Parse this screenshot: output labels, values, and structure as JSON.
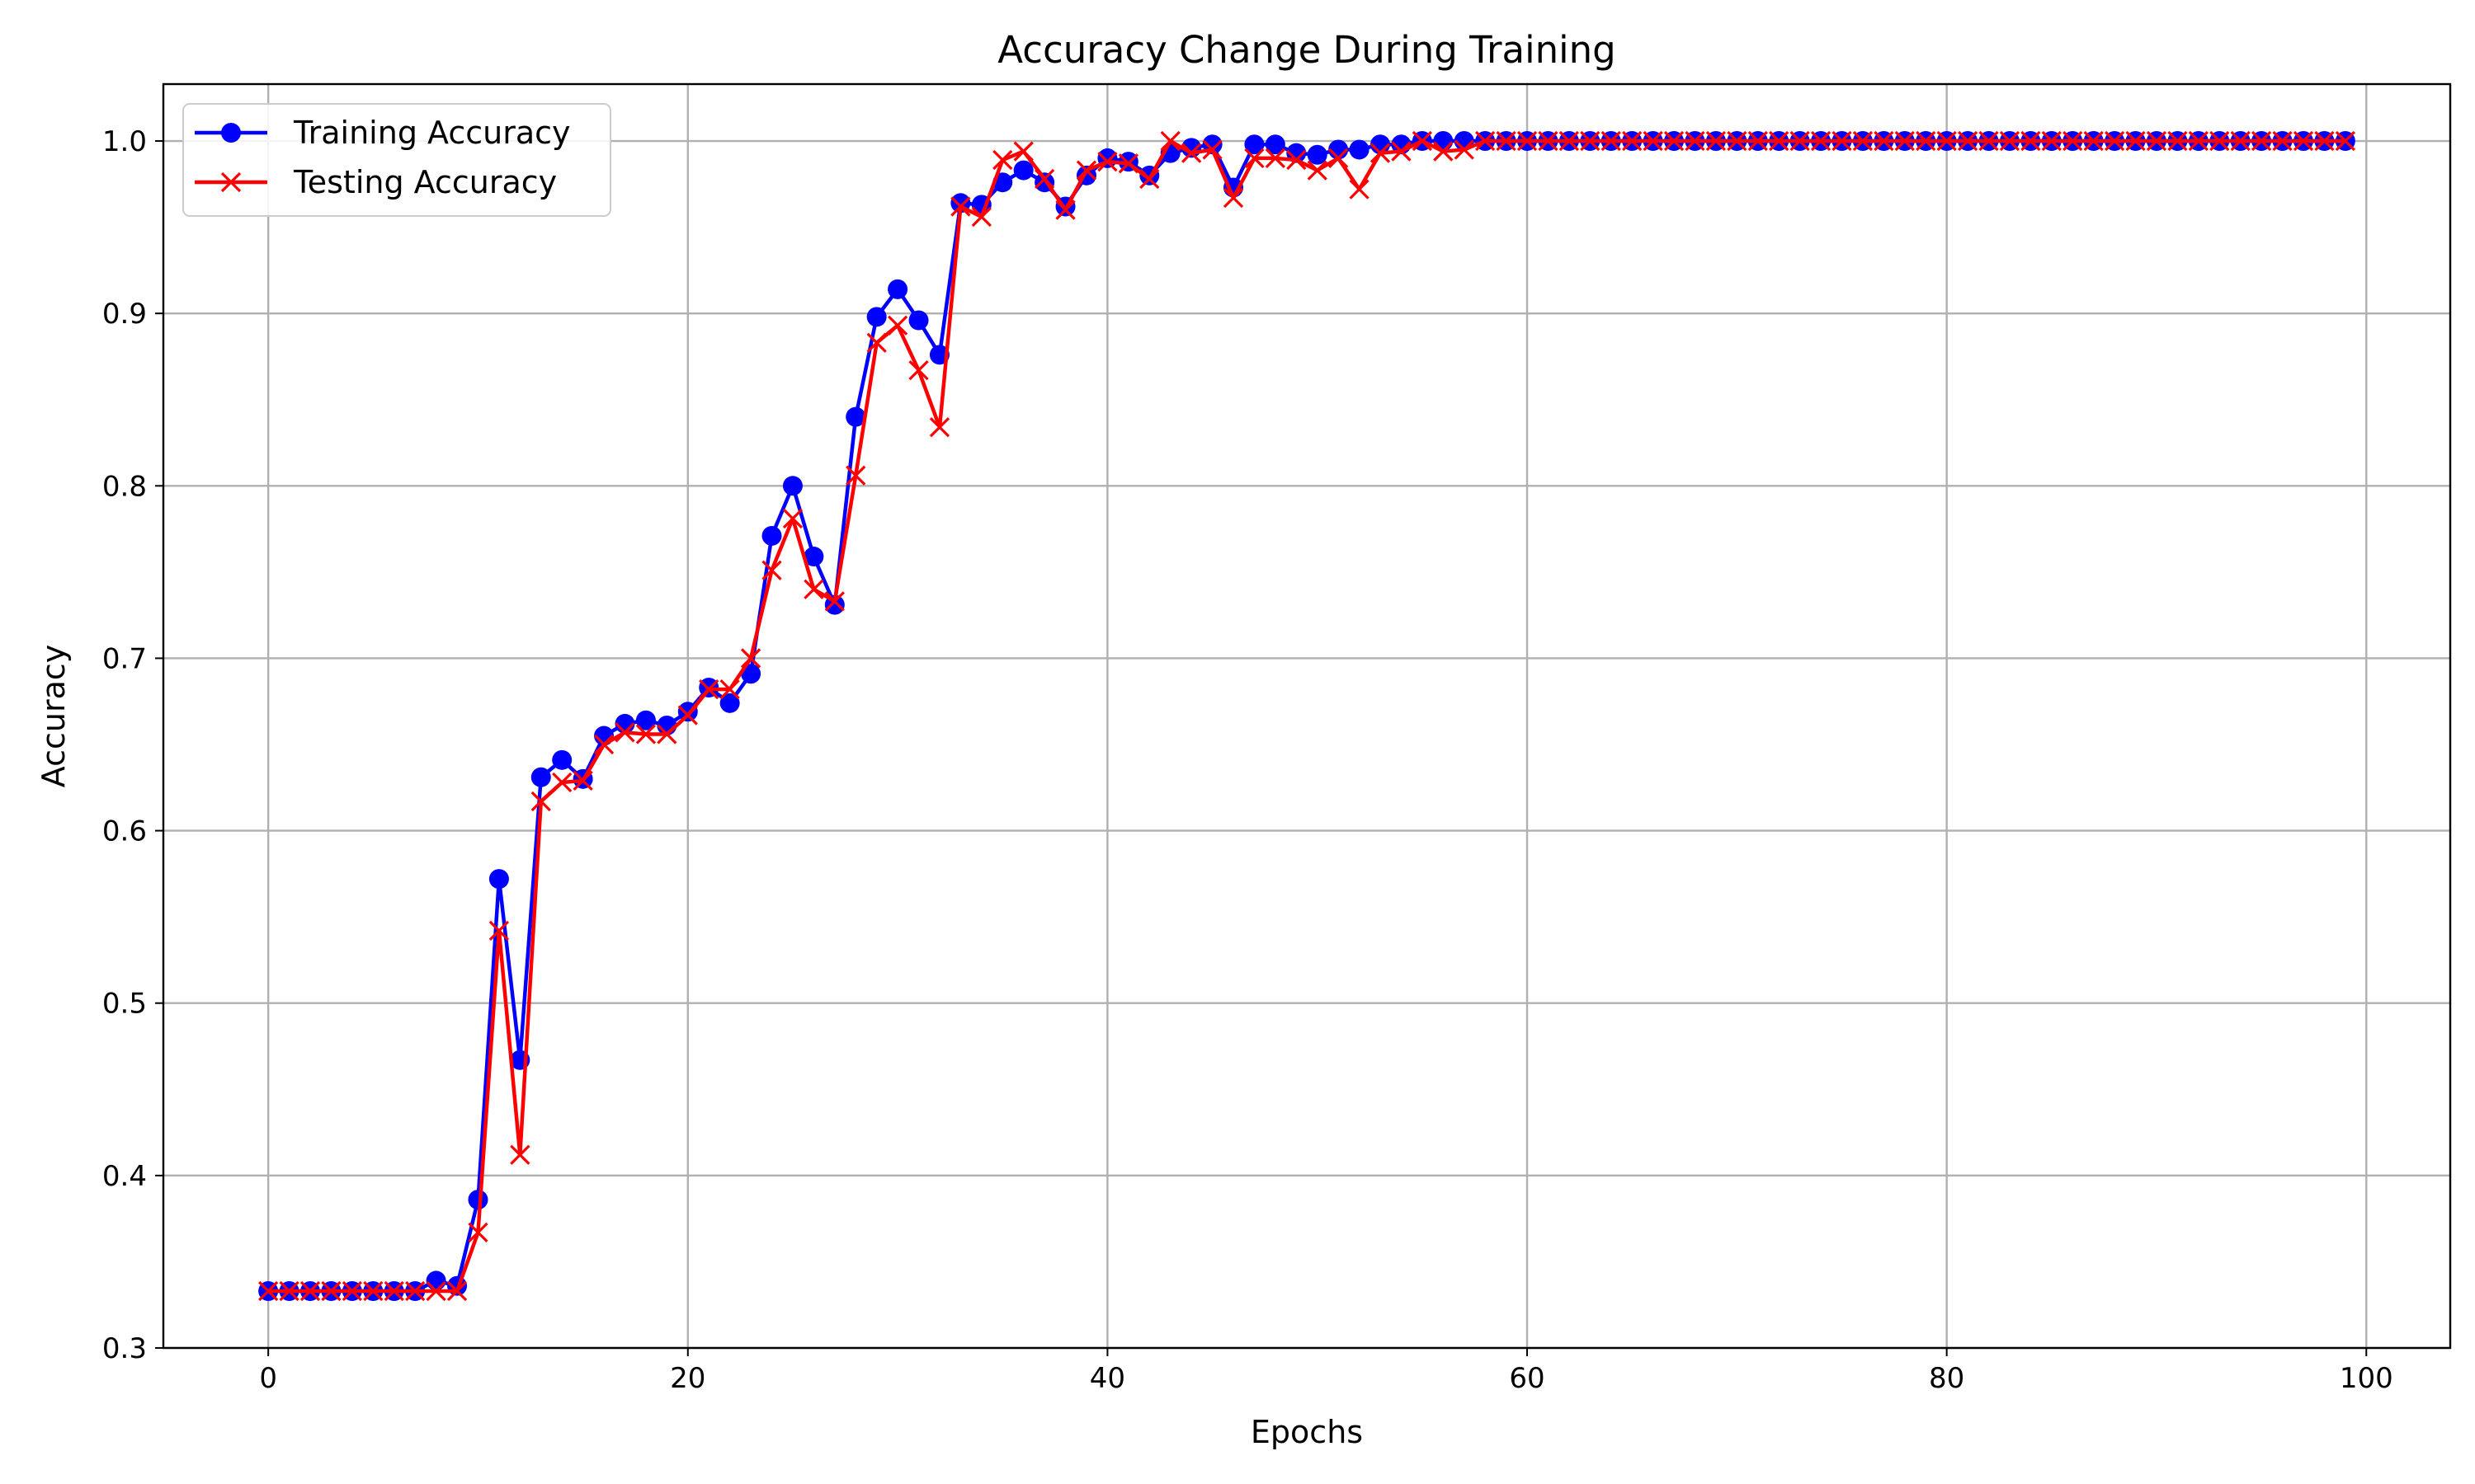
{
  "chart_data": {
    "type": "line",
    "title": "Accuracy Change During Training",
    "xlabel": "Epochs",
    "ylabel": "Accuracy",
    "xlim": [
      -5,
      104
    ],
    "ylim": [
      0.3,
      1.033
    ],
    "xticks": [
      0,
      20,
      40,
      60,
      80,
      100
    ],
    "yticks": [
      0.3,
      0.4,
      0.5,
      0.6,
      0.7,
      0.8,
      0.9,
      1.0
    ],
    "grid": true,
    "legend_position": "top-left",
    "x": [
      0,
      1,
      2,
      3,
      4,
      5,
      6,
      7,
      8,
      9,
      10,
      11,
      12,
      13,
      14,
      15,
      16,
      17,
      18,
      19,
      20,
      21,
      22,
      23,
      24,
      25,
      26,
      27,
      28,
      29,
      30,
      31,
      32,
      33,
      34,
      35,
      36,
      37,
      38,
      39,
      40,
      41,
      42,
      43,
      44,
      45,
      46,
      47,
      48,
      49,
      50,
      51,
      52,
      53,
      54,
      55,
      56,
      57,
      58,
      59,
      60,
      61,
      62,
      63,
      64,
      65,
      66,
      67,
      68,
      69,
      70,
      71,
      72,
      73,
      74,
      75,
      76,
      77,
      78,
      79,
      80,
      81,
      82,
      83,
      84,
      85,
      86,
      87,
      88,
      89,
      90,
      91,
      92,
      93,
      94,
      95,
      96,
      97,
      98,
      99
    ],
    "series": [
      {
        "name": "Training Accuracy",
        "color": "#0000ff",
        "marker": "circle",
        "values": [
          0.333,
          0.333,
          0.333,
          0.333,
          0.333,
          0.333,
          0.333,
          0.333,
          0.339,
          0.336,
          0.386,
          0.572,
          0.467,
          0.631,
          0.641,
          0.63,
          0.655,
          0.662,
          0.664,
          0.661,
          0.669,
          0.683,
          0.674,
          0.691,
          0.771,
          0.8,
          0.759,
          0.731,
          0.84,
          0.898,
          0.914,
          0.896,
          0.876,
          0.964,
          0.963,
          0.976,
          0.983,
          0.976,
          0.962,
          0.98,
          0.99,
          0.988,
          0.98,
          0.993,
          0.996,
          0.998,
          0.973,
          0.998,
          0.998,
          0.993,
          0.992,
          0.995,
          0.995,
          0.998,
          0.998,
          1.0,
          1.0,
          1.0,
          1.0,
          1.0,
          1.0,
          1.0,
          1.0,
          1.0,
          1.0,
          1.0,
          1.0,
          1.0,
          1.0,
          1.0,
          1.0,
          1.0,
          1.0,
          1.0,
          1.0,
          1.0,
          1.0,
          1.0,
          1.0,
          1.0,
          1.0,
          1.0,
          1.0,
          1.0,
          1.0,
          1.0,
          1.0,
          1.0,
          1.0,
          1.0,
          1.0,
          1.0,
          1.0,
          1.0,
          1.0,
          1.0,
          1.0,
          1.0,
          1.0,
          1.0
        ]
      },
      {
        "name": "Testing Accuracy",
        "color": "#ff0000",
        "marker": "x",
        "values": [
          0.333,
          0.333,
          0.333,
          0.333,
          0.333,
          0.333,
          0.333,
          0.333,
          0.333,
          0.333,
          0.367,
          0.542,
          0.412,
          0.617,
          0.628,
          0.629,
          0.65,
          0.657,
          0.656,
          0.656,
          0.667,
          0.682,
          0.682,
          0.7,
          0.751,
          0.781,
          0.74,
          0.733,
          0.806,
          0.883,
          0.893,
          0.867,
          0.834,
          0.962,
          0.956,
          0.989,
          0.994,
          0.978,
          0.96,
          0.983,
          0.988,
          0.987,
          0.978,
          1.0,
          0.993,
          0.995,
          0.967,
          0.99,
          0.99,
          0.989,
          0.983,
          0.99,
          0.972,
          0.993,
          0.994,
          1.0,
          0.994,
          0.995,
          1.0,
          1.0,
          1.0,
          1.0,
          1.0,
          1.0,
          1.0,
          1.0,
          1.0,
          1.0,
          1.0,
          1.0,
          1.0,
          1.0,
          1.0,
          1.0,
          1.0,
          1.0,
          1.0,
          1.0,
          1.0,
          1.0,
          1.0,
          1.0,
          1.0,
          1.0,
          1.0,
          1.0,
          1.0,
          1.0,
          1.0,
          1.0,
          1.0,
          1.0,
          1.0,
          1.0,
          1.0,
          1.0,
          1.0,
          1.0,
          1.0,
          1.0
        ]
      }
    ]
  }
}
